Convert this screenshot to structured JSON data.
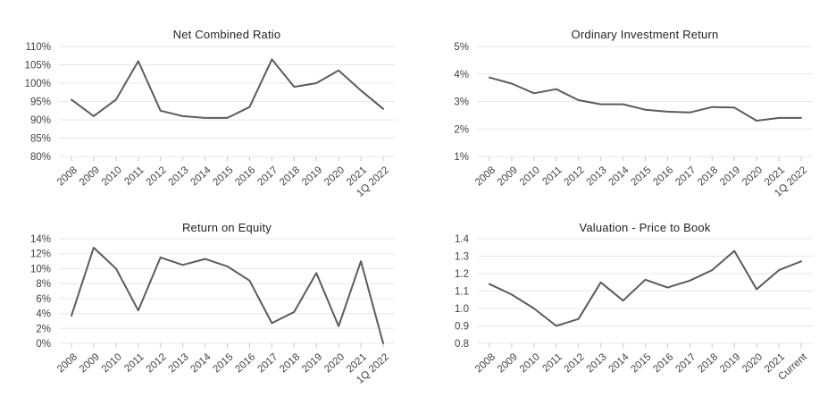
{
  "page": {
    "background": "#ffffff",
    "layout": "2x2 grid of line charts"
  },
  "style": {
    "line_color": "#595c5f",
    "grid_color": "#e8e8ea",
    "tick_color": "#c9c9cb",
    "axis_label_color": "#414144",
    "title_color": "#232326"
  },
  "chart_data": [
    {
      "type": "line",
      "title": "Net Combined Ratio",
      "xlabel": "",
      "ylabel": "",
      "grid": true,
      "legend": "none",
      "categories": [
        "2008",
        "2009",
        "2010",
        "2011",
        "2012",
        "2013",
        "2014",
        "2015",
        "2016",
        "2017",
        "2018",
        "2019",
        "2020",
        "2021",
        "1Q 2022"
      ],
      "values": [
        95.5,
        91,
        95.5,
        106,
        92.5,
        91,
        90.5,
        90.5,
        93.5,
        106.5,
        99,
        100,
        103.5,
        98,
        93
      ],
      "ylim": [
        80,
        110
      ],
      "yticks": [
        {
          "value": 110,
          "label": "110%"
        },
        {
          "value": 105,
          "label": "105%"
        },
        {
          "value": 100,
          "label": "100%"
        },
        {
          "value": 95,
          "label": "95%"
        },
        {
          "value": 90,
          "label": "90%"
        },
        {
          "value": 85,
          "label": "85%"
        },
        {
          "value": 80,
          "label": "80%"
        }
      ]
    },
    {
      "type": "line",
      "title": "Ordinary Investment Return",
      "xlabel": "",
      "ylabel": "",
      "grid": true,
      "legend": "none",
      "categories": [
        "2008",
        "2009",
        "2010",
        "2011",
        "2012",
        "2013",
        "2014",
        "2015",
        "2016",
        "2017",
        "2018",
        "2019",
        "2020",
        "2021",
        "1Q 2022"
      ],
      "values": [
        3.87,
        3.65,
        3.3,
        3.45,
        3.05,
        2.9,
        2.9,
        2.7,
        2.63,
        2.6,
        2.8,
        2.78,
        2.3,
        2.4,
        2.4
      ],
      "ylim": [
        1,
        5
      ],
      "yticks": [
        {
          "value": 5,
          "label": "5%"
        },
        {
          "value": 4,
          "label": "4%"
        },
        {
          "value": 3,
          "label": "3%"
        },
        {
          "value": 2,
          "label": "2%"
        },
        {
          "value": 1,
          "label": "1%"
        }
      ]
    },
    {
      "type": "line",
      "title": "Return on Equity",
      "xlabel": "",
      "ylabel": "",
      "grid": true,
      "legend": "none",
      "categories": [
        "2008",
        "2009",
        "2010",
        "2011",
        "2012",
        "2013",
        "2014",
        "2015",
        "2016",
        "2017",
        "2018",
        "2019",
        "2020",
        "2021",
        "1Q 2022"
      ],
      "values": [
        3.7,
        12.8,
        10,
        4.4,
        11.5,
        10.5,
        11.3,
        10.3,
        8.4,
        2.7,
        4.2,
        9.4,
        2.3,
        11,
        0
      ],
      "ylim": [
        0,
        14
      ],
      "yticks": [
        {
          "value": 14,
          "label": "14%"
        },
        {
          "value": 12,
          "label": "12%"
        },
        {
          "value": 10,
          "label": "10%"
        },
        {
          "value": 8,
          "label": "8%"
        },
        {
          "value": 6,
          "label": "6%"
        },
        {
          "value": 4,
          "label": "4%"
        },
        {
          "value": 2,
          "label": "2%"
        },
        {
          "value": 0,
          "label": "0%"
        }
      ]
    },
    {
      "type": "line",
      "title": "Valuation - Price to Book",
      "xlabel": "",
      "ylabel": "",
      "grid": true,
      "legend": "none",
      "categories": [
        "2008",
        "2009",
        "2010",
        "2011",
        "2012",
        "2013",
        "2014",
        "2015",
        "2016",
        "2017",
        "2018",
        "2019",
        "2020",
        "2021",
        "Current"
      ],
      "values": [
        1.14,
        1.08,
        1.0,
        0.9,
        0.94,
        1.15,
        1.045,
        1.165,
        1.12,
        1.16,
        1.22,
        1.33,
        1.11,
        1.22,
        1.27
      ],
      "ylim": [
        0.8,
        1.4
      ],
      "yticks": [
        {
          "value": 1.4,
          "label": "1.4"
        },
        {
          "value": 1.3,
          "label": "1.3"
        },
        {
          "value": 1.2,
          "label": "1.2"
        },
        {
          "value": 1.1,
          "label": "1.1"
        },
        {
          "value": 1.0,
          "label": "1.0"
        },
        {
          "value": 0.9,
          "label": "0.9"
        },
        {
          "value": 0.8,
          "label": "0.8"
        }
      ]
    }
  ]
}
